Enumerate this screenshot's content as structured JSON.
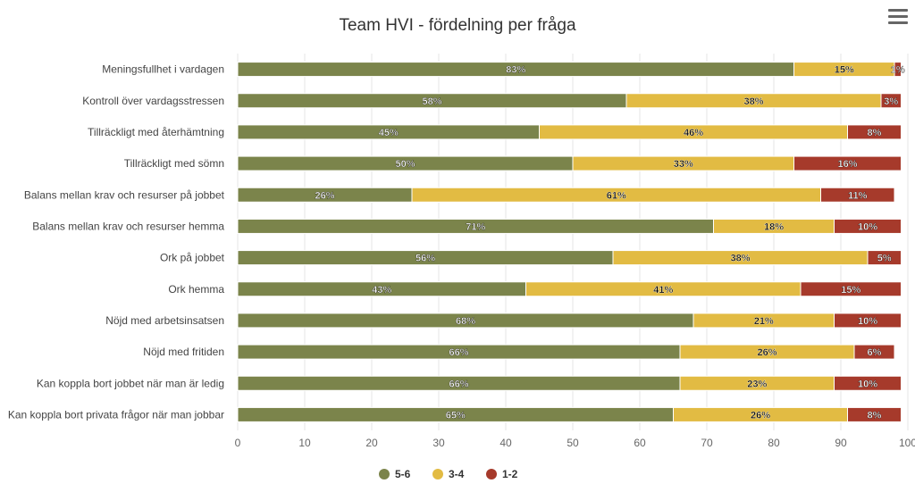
{
  "title": "Team HVI - fördelning per fråga",
  "menu_icon": "hamburger-menu-icon",
  "colors": {
    "5-6": "#7b844b",
    "3-4": "#e2bb43",
    "1-2": "#a63a2b",
    "grid": "#e6e6e6",
    "axis_text": "#666666",
    "label_text": "#444444"
  },
  "chart_data": {
    "type": "bar",
    "orientation": "horizontal",
    "stacked": true,
    "title": "Team HVI - fördelning per fråga",
    "xlim": [
      0,
      100
    ],
    "x_ticks": [
      0,
      10,
      20,
      30,
      40,
      50,
      60,
      70,
      80,
      90,
      100
    ],
    "grid": true,
    "legend_position": "bottom",
    "categories": [
      "Meningsfullhet i vardagen",
      "Kontroll över vardagsstressen",
      "Tillräckligt med återhämtning",
      "Tillräckligt med sömn",
      "Balans mellan krav och resurser på jobbet",
      "Balans mellan krav och resurser hemma",
      "Ork på jobbet",
      "Ork hemma",
      "Nöjd med arbetsinsatsen",
      "Nöjd med fritiden",
      "Kan koppla bort jobbet när man är ledig",
      "Kan koppla bort privata frågor när man jobbar"
    ],
    "series": [
      {
        "name": "5-6",
        "values": [
          83,
          58,
          45,
          50,
          26,
          71,
          56,
          43,
          68,
          66,
          66,
          65
        ]
      },
      {
        "name": "3-4",
        "values": [
          15,
          38,
          46,
          33,
          61,
          18,
          38,
          41,
          21,
          26,
          23,
          26
        ]
      },
      {
        "name": "1-2",
        "values": [
          1,
          3,
          8,
          16,
          11,
          10,
          5,
          15,
          10,
          6,
          10,
          8
        ]
      }
    ],
    "value_suffix": "%"
  }
}
